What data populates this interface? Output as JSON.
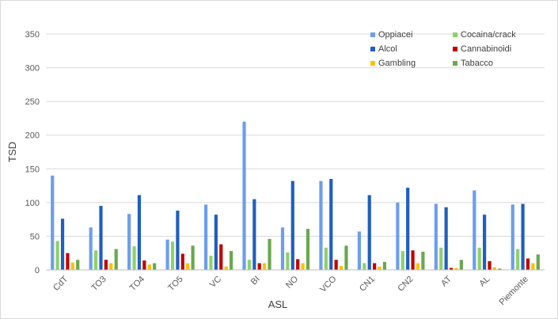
{
  "chart_data": {
    "type": "bar",
    "title": "",
    "xlabel": "ASL",
    "ylabel": "TSD",
    "ylim": [
      0,
      350
    ],
    "yticks": [
      0,
      50,
      100,
      150,
      200,
      250,
      300,
      350
    ],
    "grid": "horizontal",
    "legend_position": "top-right",
    "categories": [
      "CdT",
      "TO3",
      "TO4",
      "TO5",
      "VC",
      "BI",
      "NO",
      "VCO",
      "CN1",
      "CN2",
      "AT",
      "AL",
      "Piemonte"
    ],
    "series": [
      {
        "name": "Oppiacei",
        "color": "#6d9eeb",
        "values": [
          140,
          63,
          83,
          45,
          97,
          220,
          63,
          132,
          57,
          100,
          98,
          118,
          97
        ]
      },
      {
        "name": "Cocaina/crack",
        "color": "#8ed16a",
        "values": [
          43,
          29,
          35,
          42,
          21,
          15,
          26,
          33,
          10,
          28,
          33,
          33,
          31
        ]
      },
      {
        "name": "Alcol",
        "color": "#1f5fbf",
        "values": [
          76,
          95,
          111,
          88,
          82,
          105,
          132,
          135,
          111,
          122,
          93,
          82,
          98
        ]
      },
      {
        "name": "Cannabinoidi",
        "color": "#c00000",
        "values": [
          25,
          15,
          14,
          24,
          38,
          10,
          16,
          15,
          10,
          29,
          3,
          13,
          17
        ]
      },
      {
        "name": "Gambling",
        "color": "#ffc000",
        "values": [
          11,
          10,
          8,
          10,
          5,
          10,
          10,
          6,
          5,
          10,
          3,
          4,
          10
        ]
      },
      {
        "name": "Tabacco",
        "color": "#6aa84f",
        "values": [
          15,
          31,
          10,
          36,
          28,
          46,
          61,
          36,
          12,
          27,
          15,
          2,
          23
        ]
      }
    ]
  }
}
